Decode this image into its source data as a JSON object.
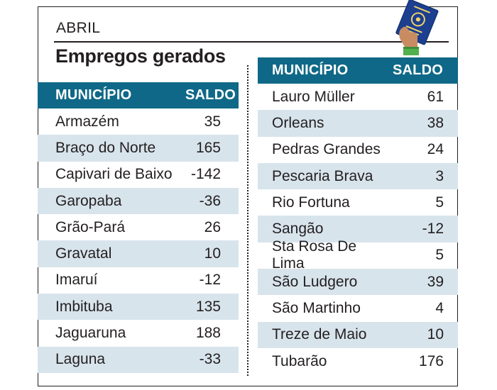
{
  "header": {
    "kicker": "ABRIL",
    "title": "Empregos gerados"
  },
  "colors": {
    "header_bg": "#0f6887",
    "row_shade": "#d8e4ec",
    "text": "#231f20"
  },
  "illustration": {
    "icon": "work-card-in-hand-icon"
  },
  "table_left": {
    "col_municipio": "MUNICÍPIO",
    "col_saldo": "SALDO",
    "rows": [
      {
        "municipio": "Armazém",
        "saldo": "35"
      },
      {
        "municipio": "Braço do Norte",
        "saldo": "165"
      },
      {
        "municipio": "Capivari de Baixo",
        "saldo": "-142"
      },
      {
        "municipio": "Garopaba",
        "saldo": "-36"
      },
      {
        "municipio": "Grão-Pará",
        "saldo": "26"
      },
      {
        "municipio": "Gravatal",
        "saldo": "10"
      },
      {
        "municipio": "Imaruí",
        "saldo": "-12"
      },
      {
        "municipio": "Imbituba",
        "saldo": "135"
      },
      {
        "municipio": "Jaguaruna",
        "saldo": "188"
      },
      {
        "municipio": "Laguna",
        "saldo": "-33"
      }
    ]
  },
  "table_right": {
    "col_municipio": "MUNICÍPIO",
    "col_saldo": "SALDO",
    "rows": [
      {
        "municipio": "Lauro Müller",
        "saldo": "61"
      },
      {
        "municipio": "Orleans",
        "saldo": "38"
      },
      {
        "municipio": "Pedras Grandes",
        "saldo": "24"
      },
      {
        "municipio": "Pescaria Brava",
        "saldo": "3"
      },
      {
        "municipio": "Rio Fortuna",
        "saldo": "5"
      },
      {
        "municipio": "Sangão",
        "saldo": "-12"
      },
      {
        "municipio": "Sta Rosa De Lima",
        "saldo": "5"
      },
      {
        "municipio": "São Ludgero",
        "saldo": "39"
      },
      {
        "municipio": "São Martinho",
        "saldo": "4"
      },
      {
        "municipio": "Treze de Maio",
        "saldo": "10"
      },
      {
        "municipio": "Tubarão",
        "saldo": "176"
      }
    ]
  }
}
